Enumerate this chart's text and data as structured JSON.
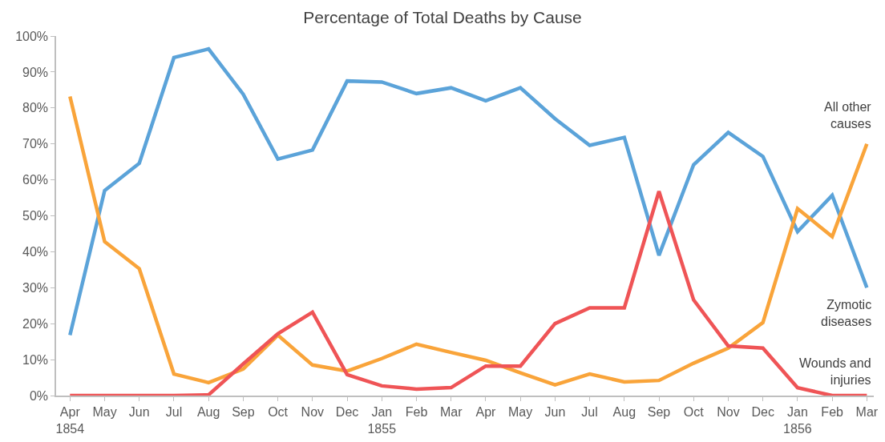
{
  "chart_data": {
    "type": "line",
    "title": "Percentage of Total Deaths by Cause",
    "categories": [
      "Apr\n1854",
      "May",
      "Jun",
      "Jul",
      "Aug",
      "Sep",
      "Oct",
      "Nov",
      "Dec",
      "Jan\n1855",
      "Feb",
      "Mar",
      "Apr",
      "May",
      "Jun",
      "Jul",
      "Aug",
      "Sep",
      "Oct",
      "Nov",
      "Dec",
      "Jan\n1856",
      "Feb",
      "Mar"
    ],
    "series": [
      {
        "name": "Zymotic\ndiseases",
        "color": "#5ba3d9",
        "values": [
          16.8,
          57,
          64.6,
          94,
          96.4,
          83.8,
          65.8,
          68.3,
          87.5,
          87.2,
          84,
          85.6,
          82,
          85.6,
          77,
          69.6,
          71.8,
          39,
          64.2,
          73.2,
          66.5,
          45.6,
          55.7,
          30
        ]
      },
      {
        "name": "All other\ncauses",
        "color": "#f9a43a",
        "values": [
          83.2,
          42.8,
          35.3,
          6,
          3.6,
          7.4,
          16.8,
          8.5,
          6.8,
          10.3,
          14.3,
          12,
          9.8,
          6.3,
          3,
          6,
          3.8,
          4.2,
          9,
          13.2,
          20.3,
          52,
          44.2,
          70
        ]
      },
      {
        "name": "Wounds and\ninjuries",
        "color": "#ef5456",
        "values": [
          0,
          0,
          0,
          0,
          0.2,
          8.8,
          17.2,
          23.2,
          5.8,
          2.7,
          1.8,
          2.2,
          8.2,
          8.2,
          20,
          24.4,
          24.4,
          56.8,
          26.6,
          13.8,
          13.2,
          2.2,
          0,
          0
        ]
      }
    ],
    "ylim": [
      0,
      100
    ],
    "yticks": [
      {
        "value": 0,
        "label": "0%"
      },
      {
        "value": 10,
        "label": "10%"
      },
      {
        "value": 20,
        "label": "20%"
      },
      {
        "value": 30,
        "label": "30%"
      },
      {
        "value": 40,
        "label": "40%"
      },
      {
        "value": 50,
        "label": "50%"
      },
      {
        "value": 60,
        "label": "60%"
      },
      {
        "value": 70,
        "label": "70%"
      },
      {
        "value": 80,
        "label": "80%"
      },
      {
        "value": 90,
        "label": "90%"
      },
      {
        "value": 100,
        "label": "100%"
      }
    ],
    "legend": false,
    "marker": "none",
    "line_style": "solid"
  }
}
